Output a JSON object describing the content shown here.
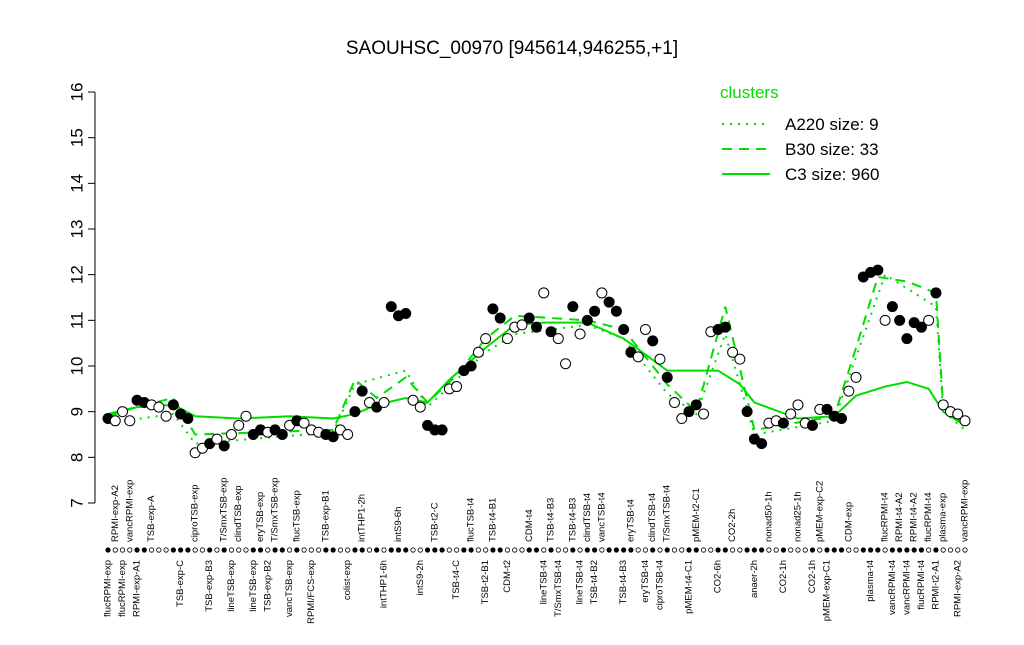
{
  "chart_data": {
    "type": "line",
    "title": "SAOUHSC_00970 [945614,946255,+1]",
    "ylim": [
      7,
      16
    ],
    "yticks": [
      7,
      8,
      9,
      10,
      11,
      12,
      13,
      14,
      15,
      16
    ],
    "legend_title": "clusters",
    "legend": "top-right",
    "categories": [
      "flucRPMI-exp",
      "RPMI-exp-A2",
      "flucRPMI-exp",
      "vancRPMI-exp",
      "RPMI-exp-A1",
      null,
      "TSB-exp-A",
      null,
      null,
      null,
      "TSB-exp-C",
      null,
      "ciproTSB-exp",
      null,
      "TSB-exp-B3",
      null,
      "T/SmxTSB-exp",
      "lineTSB-exp",
      "clindTSB-exp",
      null,
      "lineTSB-exp",
      "eryTSB-exp",
      "TSB-exp-B2",
      "T/SmxTSB-exp",
      null,
      "vancTSB-exp",
      "flucTSB-exp",
      null,
      "RPMI/FCS-exp",
      null,
      "TSB-exp-B1",
      null,
      null,
      "colist-exp",
      null,
      "intTHP1-2h",
      null,
      null,
      "intTHP1-6h",
      null,
      "intS9-6h",
      null,
      null,
      "intS9-2h",
      null,
      "TSB-t2-C",
      null,
      null,
      "TSB-t4-C",
      null,
      "flucTSB-t4",
      null,
      "TSB-t2-B1",
      "TSB-t4-B1",
      null,
      "CDM-t2",
      null,
      null,
      "CDM-t4",
      null,
      "lineTSB-t4",
      "TSB-t4-B3",
      "T/SmxTSB-t4",
      null,
      "TSB-t4-B3",
      "lineTSB-t4",
      "clindTSB-t4",
      "TSB-t4-B2",
      "vancTSB-t4",
      null,
      null,
      "TSB-t4-B3",
      "eryTSB-t4",
      null,
      "eryTSB-t4",
      "clindTSB-t4",
      "ciproTSB-t4",
      "T/SmxTSB-t4",
      null,
      null,
      "pMEM-t4-C1",
      "pMEM-t2-C1",
      null,
      null,
      "CO2-6h",
      null,
      "CO2-2h",
      null,
      null,
      "anaer-2h",
      null,
      "nonad50-1h",
      null,
      "CO2-1h",
      null,
      "nonad25-1h",
      null,
      "CO2-1h",
      "pMEM-exp-C2",
      "pMEM-exp-C1",
      null,
      null,
      "CDM-exp",
      null,
      null,
      "plasma-t4",
      null,
      "flucRPMI-t4",
      "vancRPMI-t4",
      "RPMI-t4-A2",
      "vancRPMI-t4",
      "RPMI-t4-A2",
      "flucRPMI-t4",
      "flucRPMI-t4",
      "RPMI-t2-A1",
      "plasma-exp",
      null,
      "RPMI-exp-A2",
      "vancRPMI-exp"
    ],
    "values": [
      8.85,
      8.8,
      9.0,
      8.8,
      9.25,
      9.2,
      9.15,
      9.1,
      8.9,
      9.15,
      8.95,
      8.85,
      8.1,
      8.2,
      8.3,
      8.4,
      8.25,
      8.5,
      8.7,
      8.9,
      8.5,
      8.6,
      8.55,
      8.6,
      8.5,
      8.7,
      8.8,
      8.75,
      8.6,
      8.55,
      8.5,
      8.45,
      8.6,
      8.5,
      9.0,
      9.45,
      9.2,
      9.1,
      9.2,
      11.3,
      11.1,
      11.15,
      9.25,
      9.1,
      8.7,
      8.6,
      8.6,
      9.5,
      9.55,
      9.9,
      10.0,
      10.3,
      10.6,
      11.25,
      11.05,
      10.6,
      10.85,
      10.9,
      11.05,
      10.85,
      11.6,
      10.75,
      10.6,
      10.05,
      11.3,
      10.7,
      11.0,
      11.2,
      11.6,
      11.4,
      11.2,
      10.8,
      10.3,
      10.2,
      10.8,
      10.55,
      10.15,
      9.75,
      9.2,
      8.85,
      9.0,
      9.15,
      8.95,
      10.75,
      10.8,
      10.85,
      10.3,
      10.15,
      9.0,
      8.4,
      8.3,
      8.75,
      8.8,
      8.75,
      8.95,
      9.15,
      8.75,
      8.7,
      9.05,
      9.05,
      8.9,
      8.85,
      9.45,
      9.75,
      11.95,
      12.05,
      12.1,
      11.0,
      11.3,
      11.0,
      10.6,
      10.95,
      10.85,
      11.0,
      11.6,
      9.15,
      9.0,
      8.95,
      8.8
    ],
    "point_fills": [
      "black",
      "white",
      "white",
      "white",
      "black",
      "black",
      "white",
      "white",
      "white",
      "black",
      "black",
      "black",
      "white",
      "white",
      "black",
      "white",
      "black",
      "white",
      "white",
      "white",
      "black",
      "black",
      "white",
      "black",
      "black",
      "white",
      "black",
      "white",
      "white",
      "white",
      "black",
      "black",
      "white",
      "white",
      "black",
      "black",
      "white",
      "black",
      "white",
      "black",
      "black",
      "black",
      "white",
      "white",
      "black",
      "black",
      "black",
      "white",
      "white",
      "black",
      "black",
      "white",
      "white",
      "black",
      "black",
      "white",
      "white",
      "white",
      "black",
      "black",
      "white",
      "black",
      "white",
      "white",
      "black",
      "white",
      "black",
      "black",
      "white",
      "black",
      "black",
      "black",
      "black",
      "white",
      "white",
      "black",
      "white",
      "black",
      "white",
      "white",
      "black",
      "black",
      "white",
      "white",
      "black",
      "black",
      "white",
      "white",
      "black",
      "black",
      "black",
      "white",
      "white",
      "black",
      "white",
      "white",
      "white",
      "black",
      "white",
      "black",
      "black",
      "black",
      "white",
      "white",
      "black",
      "black",
      "black",
      "white",
      "black",
      "black",
      "black",
      "black",
      "black",
      "white",
      "black",
      "white",
      "white",
      "white",
      "white"
    ],
    "series": [
      {
        "name": "A220 size: 9",
        "color": "#00dd00",
        "style": "dotted",
        "x": [
          0,
          9,
          12,
          31,
          34,
          41,
          44,
          52,
          56,
          66,
          71,
          77,
          81,
          85,
          89,
          100,
          103,
          107,
          110,
          114,
          115,
          118
        ],
        "values": [
          8.75,
          8.95,
          8.3,
          8.55,
          9.6,
          9.9,
          9.1,
          10.3,
          10.7,
          10.9,
          10.6,
          9.4,
          8.95,
          10.7,
          8.5,
          8.8,
          10.2,
          12.0,
          11.7,
          11.3,
          9.0,
          8.6
        ]
      },
      {
        "name": "B30 size: 33",
        "color": "#00dd00",
        "style": "dashed",
        "x": [
          0,
          9,
          12,
          31,
          34,
          37,
          41,
          44,
          48,
          52,
          56,
          66,
          71,
          77,
          81,
          85,
          89,
          100,
          103,
          106,
          110,
          114,
          115,
          118
        ],
        "values": [
          8.95,
          9.3,
          8.5,
          8.6,
          9.7,
          9.3,
          9.75,
          9.2,
          9.8,
          10.6,
          11.1,
          11.0,
          10.8,
          9.6,
          9.0,
          11.3,
          8.6,
          8.9,
          10.4,
          11.95,
          11.85,
          11.6,
          9.1,
          8.7
        ]
      },
      {
        "name": "C3 size: 960",
        "color": "#00dd00",
        "style": "solid",
        "x": [
          0,
          4,
          9,
          12,
          18,
          25,
          31,
          34,
          37,
          41,
          44,
          47,
          52,
          56,
          60,
          66,
          71,
          77,
          81,
          84,
          87,
          89,
          95,
          100,
          103,
          107,
          110,
          113,
          115,
          118
        ],
        "values": [
          8.9,
          9.1,
          9.15,
          8.9,
          8.85,
          8.9,
          8.85,
          8.95,
          9.15,
          9.3,
          9.2,
          9.7,
          10.4,
          10.9,
          10.95,
          10.95,
          10.6,
          9.9,
          9.9,
          9.9,
          9.6,
          9.2,
          8.85,
          8.9,
          9.35,
          9.55,
          9.65,
          9.5,
          9.0,
          8.7
        ]
      }
    ]
  }
}
